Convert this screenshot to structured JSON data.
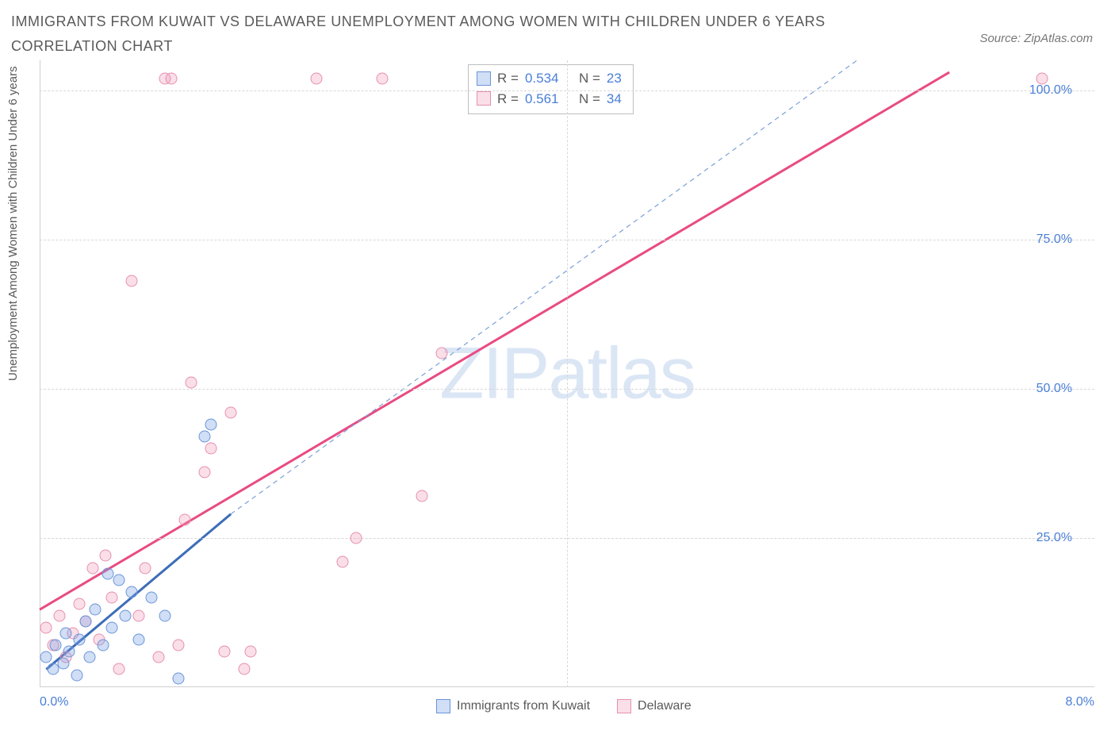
{
  "title": "IMMIGRANTS FROM KUWAIT VS DELAWARE UNEMPLOYMENT AMONG WOMEN WITH CHILDREN UNDER 6 YEARS CORRELATION CHART",
  "source": "Source: ZipAtlas.com",
  "watermark_a": "ZIP",
  "watermark_b": "atlas",
  "chart": {
    "type": "scatter",
    "xlabel": "",
    "ylabel": "Unemployment Among Women with Children Under 6 years",
    "xlim": [
      0,
      8
    ],
    "ylim": [
      0,
      105
    ],
    "xticks": [
      {
        "v": 0,
        "l": "0.0%"
      },
      {
        "v": 8,
        "l": "8.0%"
      }
    ],
    "yticks": [
      {
        "v": 25,
        "l": "25.0%"
      },
      {
        "v": 50,
        "l": "50.0%"
      },
      {
        "v": 75,
        "l": "75.0%"
      },
      {
        "v": 100,
        "l": "100.0%"
      }
    ],
    "vgrid": [
      4
    ],
    "background_color": "#ffffff",
    "grid_color": "#d8d8d8",
    "axis_color": "#cfcfcf",
    "tick_color": "#4a7fd8",
    "colors": {
      "blue_fill": "rgba(120,160,230,0.35)",
      "blue_stroke": "#6a95d8",
      "blue_line": "#3d6db8",
      "pink_fill": "rgba(240,150,180,0.30)",
      "pink_stroke": "#e68fb0",
      "pink_line": "#e94b82",
      "dashed": "#7aa0d8"
    },
    "marker_size": 15,
    "series_blue": {
      "name": "Immigrants from Kuwait",
      "R": "0.534",
      "N": "23",
      "points": [
        [
          0.05,
          5
        ],
        [
          0.1,
          3
        ],
        [
          0.12,
          7
        ],
        [
          0.18,
          4
        ],
        [
          0.2,
          9
        ],
        [
          0.22,
          6
        ],
        [
          0.28,
          2
        ],
        [
          0.3,
          8
        ],
        [
          0.35,
          11
        ],
        [
          0.38,
          5
        ],
        [
          0.42,
          13
        ],
        [
          0.48,
          7
        ],
        [
          0.52,
          19
        ],
        [
          0.55,
          10
        ],
        [
          0.6,
          18
        ],
        [
          0.65,
          12
        ],
        [
          0.7,
          16
        ],
        [
          0.75,
          8
        ],
        [
          0.85,
          15
        ],
        [
          0.95,
          12
        ],
        [
          1.05,
          1.5
        ],
        [
          1.25,
          42
        ],
        [
          1.3,
          44
        ]
      ],
      "trend": {
        "x1": 0.05,
        "y1": 3,
        "x2": 1.45,
        "y2": 29
      }
    },
    "series_pink": {
      "name": "Delaware",
      "R": "0.561",
      "N": "34",
      "points": [
        [
          0.05,
          10
        ],
        [
          0.1,
          7
        ],
        [
          0.15,
          12
        ],
        [
          0.2,
          5
        ],
        [
          0.25,
          9
        ],
        [
          0.3,
          14
        ],
        [
          0.35,
          11
        ],
        [
          0.4,
          20
        ],
        [
          0.45,
          8
        ],
        [
          0.5,
          22
        ],
        [
          0.55,
          15
        ],
        [
          0.6,
          3
        ],
        [
          0.7,
          68
        ],
        [
          0.75,
          12
        ],
        [
          0.8,
          20
        ],
        [
          0.9,
          5
        ],
        [
          0.95,
          102
        ],
        [
          1.0,
          102
        ],
        [
          1.05,
          7
        ],
        [
          1.1,
          28
        ],
        [
          1.15,
          51
        ],
        [
          1.25,
          36
        ],
        [
          1.3,
          40
        ],
        [
          1.4,
          6
        ],
        [
          1.45,
          46
        ],
        [
          1.55,
          3
        ],
        [
          1.6,
          6
        ],
        [
          2.1,
          102
        ],
        [
          2.3,
          21
        ],
        [
          2.4,
          25
        ],
        [
          2.6,
          102
        ],
        [
          2.9,
          32
        ],
        [
          3.05,
          56
        ],
        [
          7.6,
          102
        ]
      ],
      "trend": {
        "x1": 0,
        "y1": 13,
        "x2": 6.9,
        "y2": 103
      }
    },
    "dashed_line": {
      "x1": 1.45,
      "y1": 29,
      "x2": 6.2,
      "y2": 105
    },
    "stats_labels": {
      "R": "R =",
      "N": "N ="
    }
  }
}
